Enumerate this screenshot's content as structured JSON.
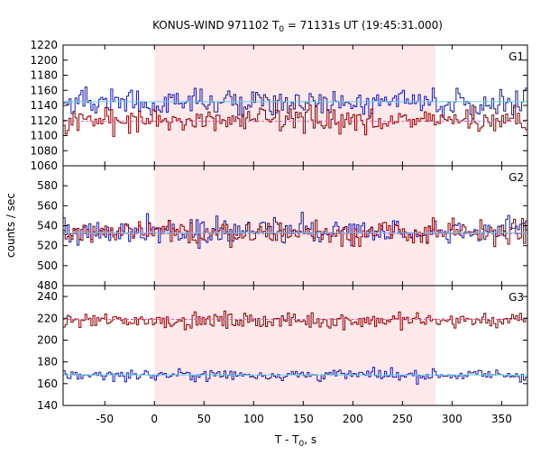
{
  "chart_data": {
    "type": "line",
    "title_prefix": "KONUS-WIND 971102 T",
    "title_sub": "0",
    "title_suffix": " = 71131s UT (19:45:31.000)",
    "xlabel_prefix": "T - T",
    "xlabel_sub": "0",
    "xlabel_suffix": ", s",
    "ylabel": "counts / sec",
    "xlim": [
      -92,
      376
    ],
    "xticks": [
      -50,
      0,
      50,
      100,
      150,
      200,
      250,
      300,
      350
    ],
    "xtick_labels": [
      "-50",
      "0",
      "50",
      "100",
      "150",
      "200",
      "250",
      "300",
      "350"
    ],
    "highlight": {
      "x0": 0,
      "x1": 283,
      "color": "#fde8ea"
    },
    "colors": {
      "red_series": "#8b0000",
      "blue_series": "#1a1aa8",
      "red_bg": "#e060a8",
      "blue_bg": "#66ccee"
    },
    "panels": [
      {
        "name": "G1",
        "ylim": [
          1060,
          1220
        ],
        "yticks": [
          1060,
          1080,
          1100,
          1120,
          1140,
          1160,
          1180,
          1200,
          1220
        ],
        "ytick_labels": [
          "1060",
          "1080",
          "1100",
          "1120",
          "1140",
          "1160",
          "1180",
          "1200",
          "1220"
        ],
        "series": [
          {
            "color_key": "blue_series",
            "mean": 1144,
            "amp": 22,
            "background": 1145
          },
          {
            "color_key": "red_series",
            "mean": 1120,
            "amp": 20,
            "background": 1119
          }
        ]
      },
      {
        "name": "G2",
        "ylim": [
          480,
          600
        ],
        "yticks": [
          480,
          500,
          520,
          540,
          560,
          580
        ],
        "ytick_labels": [
          "480",
          "500",
          "520",
          "540",
          "560",
          "580"
        ],
        "series": [
          {
            "color_key": "blue_series",
            "mean": 535,
            "amp": 16,
            "background": 533
          },
          {
            "color_key": "red_series",
            "mean": 533,
            "amp": 15,
            "background": 532
          }
        ]
      },
      {
        "name": "G3",
        "ylim": [
          140,
          250
        ],
        "yticks": [
          140,
          160,
          180,
          200,
          220,
          240
        ],
        "ytick_labels": [
          "140",
          "160",
          "180",
          "200",
          "220",
          "240"
        ],
        "series": [
          {
            "color_key": "red_series",
            "mean": 218,
            "amp": 9,
            "background": 219
          },
          {
            "color_key": "blue_series",
            "mean": 168,
            "amp": 7,
            "background": 168
          }
        ]
      }
    ]
  }
}
